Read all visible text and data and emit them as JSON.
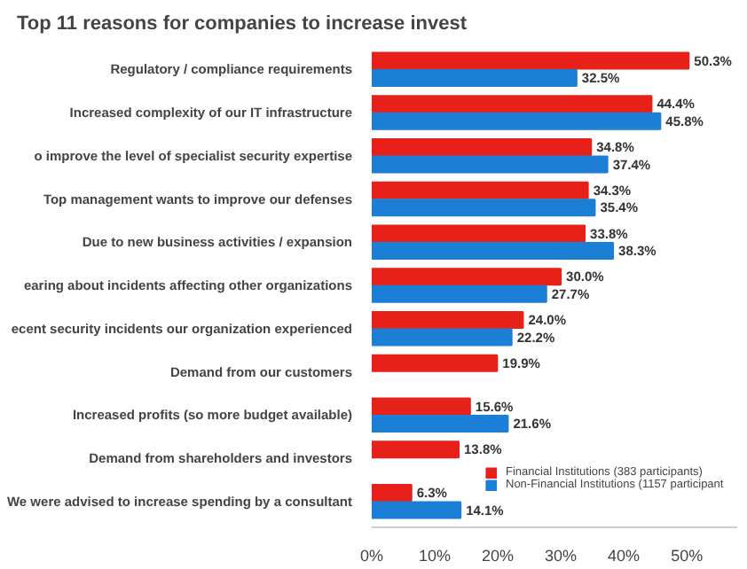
{
  "chart_data": {
    "type": "bar",
    "orientation": "horizontal",
    "title": "Top 11 reasons for companies to increase invest",
    "categories": [
      "Regulatory / compliance requirements",
      "Increased complexity of our IT infrastructure",
      "o improve the level of specialist security expertise",
      "Top management wants to improve our defenses",
      "Due to new business activities / expansion",
      "earing about incidents affecting other organizations",
      "ecent security incidents our organization experienced",
      "Demand from our customers",
      "Increased profits (so more budget available)",
      "Demand from shareholders and investors",
      "We were advised to increase spending by a consultant"
    ],
    "series": [
      {
        "name": "Financial Institutions (383 participants)",
        "color": "#e8201a",
        "values": [
          50.3,
          44.4,
          34.8,
          34.3,
          33.8,
          30.0,
          24.0,
          19.9,
          15.6,
          13.8,
          6.3
        ],
        "value_labels": [
          "50.3%",
          "44.4%",
          "34.8%",
          "34.3%",
          "33.8%",
          "30.0%",
          "24.0%",
          "19.9%",
          "15.6%",
          "13.8%",
          "6.3%"
        ]
      },
      {
        "name": "Non-Financial Institutions (1157 participant",
        "color": "#1c7fd6",
        "values": [
          32.5,
          45.8,
          37.4,
          35.4,
          38.3,
          27.7,
          22.2,
          null,
          21.6,
          null,
          14.1
        ],
        "value_labels": [
          "32.5%",
          "45.8%",
          "37.4%",
          "35.4%",
          "38.3%",
          "27.7%",
          "22.2%",
          null,
          "21.6%",
          null,
          "14.1%"
        ]
      }
    ],
    "xlim": [
      0,
      58
    ],
    "xticks": [
      {
        "value": 0,
        "label": "0%"
      },
      {
        "value": 10,
        "label": "10%"
      },
      {
        "value": 20,
        "label": "20%"
      },
      {
        "value": 30,
        "label": "30%"
      },
      {
        "value": 40,
        "label": "40%"
      },
      {
        "value": 50,
        "label": "50%"
      }
    ],
    "grid": false,
    "legend": "bottom right"
  }
}
